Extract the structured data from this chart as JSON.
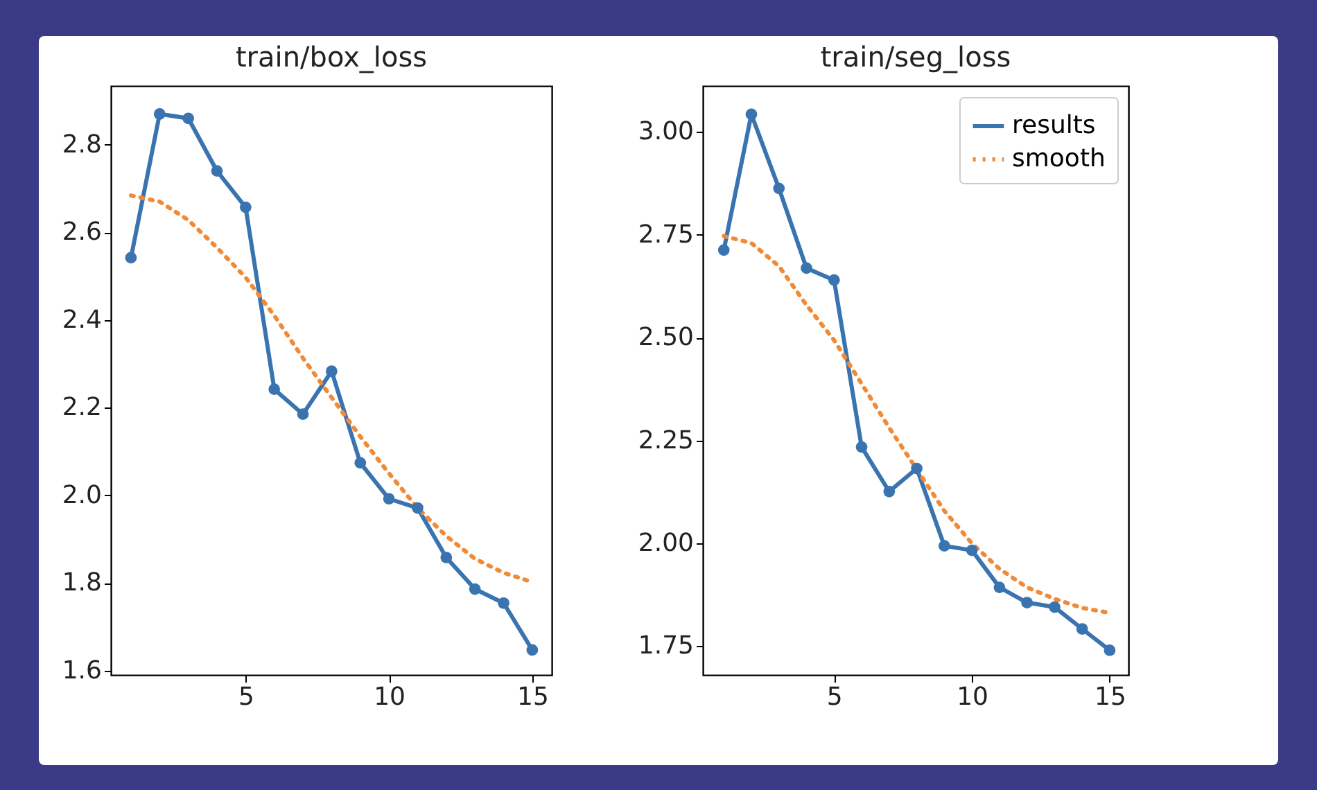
{
  "chart_data": [
    {
      "type": "line",
      "title": "train/box_loss",
      "x": [
        1,
        2,
        3,
        4,
        5,
        6,
        7,
        8,
        9,
        10,
        11,
        12,
        13,
        14,
        15
      ],
      "xlim": [
        0.3,
        15.68
      ],
      "xticks": [
        5,
        10,
        15
      ],
      "ylim": [
        1.59,
        2.934
      ],
      "yticks": [
        1.6,
        1.8,
        {
          "value": 2,
          "label": "2.0"
        },
        2.2,
        2.4,
        2.6,
        2.8
      ],
      "grid": false,
      "legend": false,
      "series": [
        {
          "color": "#3a74b0",
          "marker": "circle",
          "line_style": "solid",
          "values": [
            2.542,
            2.87,
            2.86,
            2.74,
            2.657,
            2.242,
            2.185,
            2.283,
            2.074,
            1.992,
            1.971,
            1.858,
            1.786,
            1.754,
            1.647
          ]
        },
        {
          "color": "#f08a36",
          "marker": "none",
          "line_style": "dotted",
          "values": [
            2.684,
            2.67,
            2.628,
            2.565,
            2.497,
            2.41,
            2.313,
            2.223,
            2.134,
            2.05,
            1.971,
            1.907,
            1.855,
            1.823,
            1.802
          ]
        }
      ]
    },
    {
      "type": "line",
      "title": "train/seg_loss",
      "x": [
        1,
        2,
        3,
        4,
        5,
        6,
        7,
        8,
        9,
        10,
        11,
        12,
        13,
        14,
        15
      ],
      "xlim": [
        0.24,
        15.68
      ],
      "xticks": [
        5,
        10,
        15
      ],
      "ylim": [
        1.68,
        3.112
      ],
      "yticks": [
        {
          "value": 1.75,
          "label": "1.75"
        },
        {
          "value": 2,
          "label": "2.00"
        },
        {
          "value": 2.25,
          "label": "2.25"
        },
        {
          "value": 2.5,
          "label": "2.50"
        },
        {
          "value": 2.75,
          "label": "2.75"
        },
        {
          "value": 3,
          "label": "3.00"
        }
      ],
      "grid": false,
      "legend": "top right",
      "series": [
        {
          "name": "results",
          "color": "#3a74b0",
          "marker": "circle",
          "line_style": "solid",
          "values": [
            2.713,
            3.043,
            2.863,
            2.669,
            2.64,
            2.234,
            2.126,
            2.182,
            1.994,
            1.983,
            1.893,
            1.856,
            1.845,
            1.792,
            1.74
          ]
        },
        {
          "name": "smooth",
          "color": "#f08a36",
          "marker": "none",
          "line_style": "dotted",
          "values": [
            2.747,
            2.73,
            2.674,
            2.579,
            2.494,
            2.388,
            2.281,
            2.18,
            2.079,
            2.0,
            1.938,
            1.893,
            1.865,
            1.843,
            1.831
          ]
        }
      ]
    }
  ]
}
